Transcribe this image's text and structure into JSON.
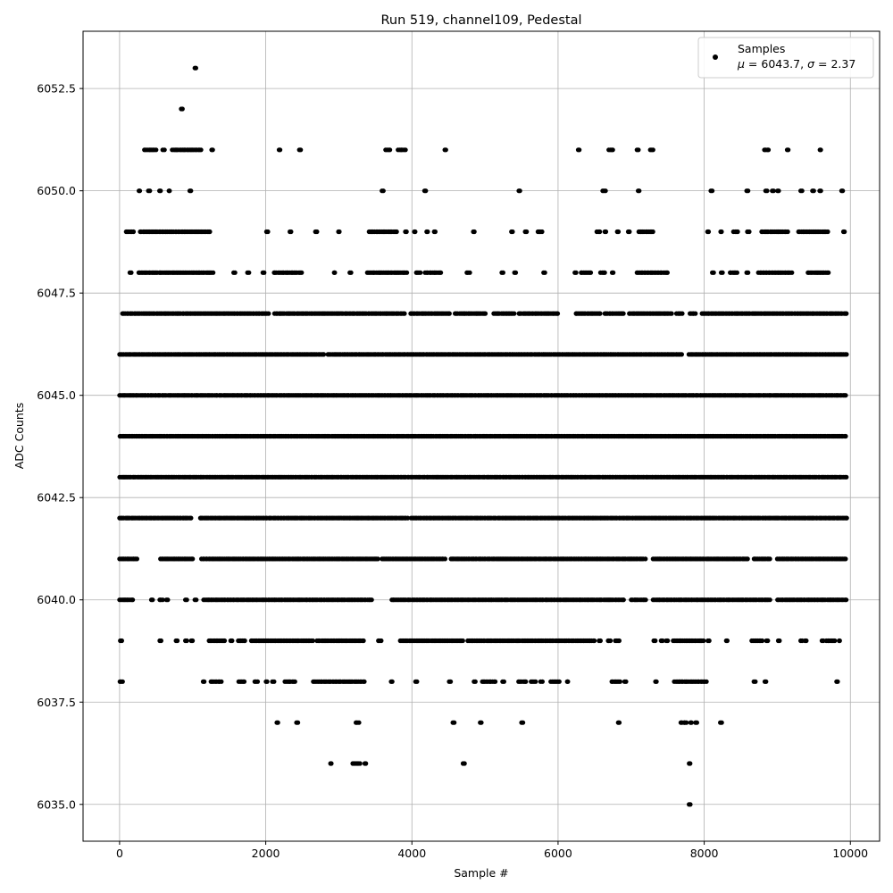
{
  "chart_data": {
    "type": "scatter",
    "title": "Run 519, channel109, Pedestal",
    "xlabel": "Sample #",
    "ylabel": "ADC Counts",
    "xlim": [
      -500,
      10400
    ],
    "ylim": [
      6034.1,
      6053.9
    ],
    "xticks": [
      0,
      2000,
      4000,
      6000,
      8000,
      10000
    ],
    "xtick_labels": [
      "0",
      "2000",
      "4000",
      "6000",
      "8000",
      "10000"
    ],
    "yticks": [
      6035.0,
      6037.5,
      6040.0,
      6042.5,
      6045.0,
      6047.5,
      6050.0,
      6052.5
    ],
    "ytick_labels": [
      "6035.0",
      "6037.5",
      "6040.0",
      "6042.5",
      "6045.0",
      "6047.5",
      "6050.0",
      "6052.5"
    ],
    "grid": true,
    "legend": {
      "position": "top-right",
      "label": "Samples",
      "stats_mu": "6043.7",
      "stats_sigma": "2.37"
    },
    "marker_color": "#000000",
    "n_samples": 10000,
    "level_segments": [
      {
        "y": 6052,
        "ranges": [
          [
            840,
            860
          ]
        ]
      },
      {
        "y": 6053,
        "ranges": [
          [
            1030,
            1050
          ]
        ]
      },
      {
        "y": 6051,
        "ranges": [
          [
            340,
            500
          ],
          [
            590,
            620
          ],
          [
            720,
            1120
          ],
          [
            1260,
            1290
          ],
          [
            2180,
            2200
          ],
          [
            2460,
            2480
          ],
          [
            3640,
            3700
          ],
          [
            3810,
            3920
          ],
          [
            4450,
            4470
          ],
          [
            6270,
            6290
          ],
          [
            6690,
            6750
          ],
          [
            7080,
            7100
          ],
          [
            7260,
            7300
          ],
          [
            8820,
            8880
          ],
          [
            9130,
            9150
          ],
          [
            9580,
            9600
          ]
        ]
      },
      {
        "y": 6050,
        "ranges": [
          [
            260,
            280
          ],
          [
            390,
            420
          ],
          [
            540,
            570
          ],
          [
            670,
            700
          ],
          [
            960,
            980
          ],
          [
            3590,
            3610
          ],
          [
            4170,
            4190
          ],
          [
            5460,
            5480
          ],
          [
            6610,
            6650
          ],
          [
            7090,
            7110
          ],
          [
            8090,
            8110
          ],
          [
            8580,
            8600
          ],
          [
            8840,
            8860
          ],
          [
            8930,
            8950
          ],
          [
            9000,
            9020
          ],
          [
            9320,
            9340
          ],
          [
            9480,
            9500
          ],
          [
            9580,
            9600
          ],
          [
            9880,
            9900
          ]
        ]
      },
      {
        "y": 6049,
        "ranges": [
          [
            90,
            200
          ],
          [
            280,
            1250
          ],
          [
            2010,
            2030
          ],
          [
            2330,
            2350
          ],
          [
            2680,
            2700
          ],
          [
            2990,
            3010
          ],
          [
            3410,
            3800
          ],
          [
            3910,
            3930
          ],
          [
            4030,
            4050
          ],
          [
            4200,
            4220
          ],
          [
            4300,
            4320
          ],
          [
            4840,
            4860
          ],
          [
            5360,
            5380
          ],
          [
            5550,
            5570
          ],
          [
            5720,
            5790
          ],
          [
            6530,
            6580
          ],
          [
            6640,
            6660
          ],
          [
            6810,
            6830
          ],
          [
            6960,
            6980
          ],
          [
            7100,
            7300
          ],
          [
            8040,
            8060
          ],
          [
            8220,
            8240
          ],
          [
            8400,
            8460
          ],
          [
            8590,
            8620
          ],
          [
            8780,
            9150
          ],
          [
            9290,
            9700
          ],
          [
            9900,
            9920
          ]
        ]
      },
      {
        "y": 6048,
        "ranges": [
          [
            140,
            160
          ],
          [
            260,
            1280
          ],
          [
            1560,
            1580
          ],
          [
            1750,
            1770
          ],
          [
            1960,
            1980
          ],
          [
            2110,
            2500
          ],
          [
            2930,
            2950
          ],
          [
            3150,
            3170
          ],
          [
            3390,
            3940
          ],
          [
            4060,
            4120
          ],
          [
            4180,
            4400
          ],
          [
            4750,
            4800
          ],
          [
            5230,
            5250
          ],
          [
            5400,
            5420
          ],
          [
            5800,
            5820
          ],
          [
            6230,
            6250
          ],
          [
            6310,
            6450
          ],
          [
            6580,
            6650
          ],
          [
            6740,
            6760
          ],
          [
            7080,
            7500
          ],
          [
            8110,
            8130
          ],
          [
            8230,
            8250
          ],
          [
            8350,
            8450
          ],
          [
            8580,
            8600
          ],
          [
            8740,
            9200
          ],
          [
            9420,
            9700
          ]
        ]
      },
      {
        "y": 6047,
        "ranges": [
          [
            40,
            2050
          ],
          [
            2120,
            3900
          ],
          [
            3980,
            4520
          ],
          [
            4590,
            5020
          ],
          [
            5120,
            5400
          ],
          [
            5460,
            6000
          ],
          [
            6240,
            6580
          ],
          [
            6640,
            6900
          ],
          [
            6970,
            7560
          ],
          [
            7620,
            7700
          ],
          [
            7800,
            7880
          ],
          [
            7970,
            9950
          ]
        ]
      },
      {
        "y": 6046,
        "ranges": [
          [
            0,
            2800
          ],
          [
            2850,
            7700
          ],
          [
            7790,
            9950
          ]
        ]
      },
      {
        "y": 6045,
        "ranges": [
          [
            0,
            9950
          ]
        ]
      },
      {
        "y": 6044,
        "ranges": [
          [
            0,
            9950
          ]
        ]
      },
      {
        "y": 6043,
        "ranges": [
          [
            0,
            9950
          ]
        ]
      },
      {
        "y": 6042,
        "ranges": [
          [
            0,
            980
          ],
          [
            1100,
            3950
          ],
          [
            3990,
            9950
          ]
        ]
      },
      {
        "y": 6041,
        "ranges": [
          [
            0,
            250
          ],
          [
            560,
            1000
          ],
          [
            1120,
            3550
          ],
          [
            3590,
            4460
          ],
          [
            4530,
            7200
          ],
          [
            7300,
            8600
          ],
          [
            8680,
            8900
          ],
          [
            9000,
            9950
          ]
        ]
      },
      {
        "y": 6040,
        "ranges": [
          [
            0,
            180
          ],
          [
            430,
            460
          ],
          [
            550,
            600
          ],
          [
            640,
            660
          ],
          [
            900,
            920
          ],
          [
            1030,
            1050
          ],
          [
            1150,
            3450
          ],
          [
            3720,
            6900
          ],
          [
            7000,
            7200
          ],
          [
            7300,
            8900
          ],
          [
            9000,
            9950
          ]
        ]
      },
      {
        "y": 6039,
        "ranges": [
          [
            10,
            30
          ],
          [
            550,
            580
          ],
          [
            770,
            790
          ],
          [
            900,
            920
          ],
          [
            980,
            1000
          ],
          [
            1220,
            1450
          ],
          [
            1520,
            1540
          ],
          [
            1620,
            1720
          ],
          [
            1800,
            2650
          ],
          [
            2700,
            3350
          ],
          [
            3540,
            3580
          ],
          [
            3840,
            4700
          ],
          [
            4760,
            6500
          ],
          [
            6560,
            6580
          ],
          [
            6680,
            6720
          ],
          [
            6780,
            6840
          ],
          [
            7310,
            7330
          ],
          [
            7410,
            7430
          ],
          [
            7480,
            7500
          ],
          [
            7570,
            8000
          ],
          [
            8050,
            8070
          ],
          [
            8300,
            8320
          ],
          [
            8650,
            8800
          ],
          [
            8850,
            8870
          ],
          [
            9010,
            9030
          ],
          [
            9320,
            9340
          ],
          [
            9380,
            9400
          ],
          [
            9610,
            9630
          ],
          [
            9670,
            9800
          ],
          [
            9840,
            9860
          ]
        ]
      },
      {
        "y": 6038,
        "ranges": [
          [
            0,
            50
          ],
          [
            1140,
            1160
          ],
          [
            1250,
            1400
          ],
          [
            1630,
            1720
          ],
          [
            1850,
            1900
          ],
          [
            2000,
            2020
          ],
          [
            2090,
            2120
          ],
          [
            2260,
            2400
          ],
          [
            2650,
            3350
          ],
          [
            3710,
            3730
          ],
          [
            4050,
            4070
          ],
          [
            4510,
            4530
          ],
          [
            4850,
            4870
          ],
          [
            4960,
            5150
          ],
          [
            5240,
            5260
          ],
          [
            5460,
            5560
          ],
          [
            5630,
            5700
          ],
          [
            5760,
            5790
          ],
          [
            5900,
            6030
          ],
          [
            6120,
            6150
          ],
          [
            6730,
            6850
          ],
          [
            6910,
            6930
          ],
          [
            7330,
            7350
          ],
          [
            7590,
            8040
          ],
          [
            8680,
            8700
          ],
          [
            8830,
            8850
          ],
          [
            9810,
            9830
          ]
        ]
      },
      {
        "y": 6037,
        "ranges": [
          [
            2150,
            2170
          ],
          [
            2420,
            2440
          ],
          [
            3230,
            3280
          ],
          [
            4560,
            4580
          ],
          [
            4930,
            4950
          ],
          [
            5500,
            5520
          ],
          [
            6820,
            6840
          ],
          [
            7680,
            7760
          ],
          [
            7810,
            7830
          ],
          [
            7880,
            7900
          ],
          [
            8220,
            8240
          ]
        ]
      },
      {
        "y": 6036,
        "ranges": [
          [
            2880,
            2900
          ],
          [
            3190,
            3290
          ],
          [
            3350,
            3370
          ],
          [
            4700,
            4720
          ],
          [
            7790,
            7810
          ]
        ]
      },
      {
        "y": 6035,
        "ranges": [
          [
            7790,
            7810
          ]
        ]
      }
    ]
  }
}
